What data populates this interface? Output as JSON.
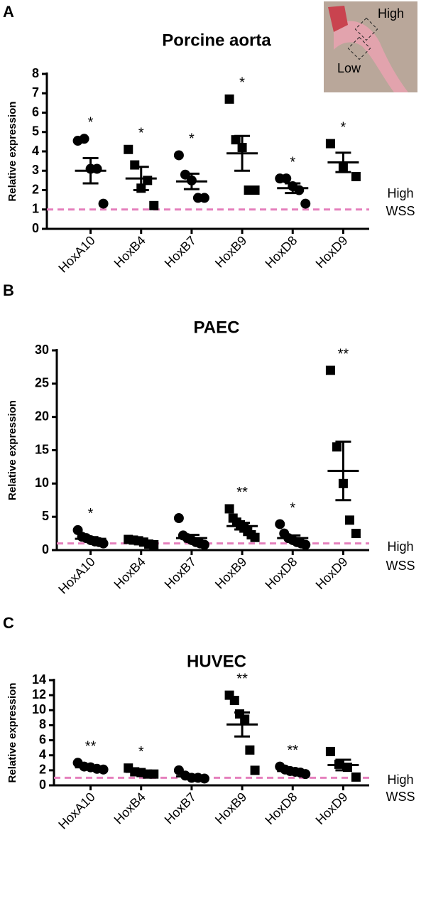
{
  "chart_data": [
    {
      "type": "dot",
      "panel": "A",
      "title": "Porcine aorta",
      "y_label": "Relative expression",
      "inset_labels": [
        "High",
        "Low"
      ],
      "categories": [
        "HoxA10",
        "HoxB4",
        "HoxB7",
        "HoxB9",
        "HoxD8",
        "HoxD9"
      ],
      "markers": [
        "circle",
        "square",
        "circle",
        "square",
        "circle",
        "square"
      ],
      "values": [
        [
          4.55,
          4.65,
          3.1,
          3.1,
          1.3
        ],
        [
          4.1,
          3.3,
          2.1,
          2.5,
          1.2
        ],
        [
          3.8,
          2.8,
          2.5,
          1.6,
          1.6
        ],
        [
          6.7,
          4.6,
          4.2,
          2.0,
          2.0
        ],
        [
          2.6,
          2.6,
          2.2,
          2.0,
          1.3
        ],
        [
          4.4,
          3.2,
          2.7
        ]
      ],
      "means": [
        3.0,
        2.6,
        2.45,
        3.9,
        2.1,
        3.43
      ],
      "sems": [
        0.65,
        0.6,
        0.4,
        0.9,
        0.25,
        0.5
      ],
      "significance": [
        "*",
        "*",
        "*",
        "*",
        "*",
        "*"
      ],
      "reference": {
        "value": 1,
        "labels": [
          "High",
          "WSS"
        ],
        "color": "#e580bd"
      },
      "ylim": [
        0,
        8
      ],
      "yticks": [
        0,
        1,
        2,
        3,
        4,
        5,
        6,
        7,
        8
      ]
    },
    {
      "type": "dot",
      "panel": "B",
      "title": "PAEC",
      "y_label": "Relative expression",
      "categories": [
        "HoxA10",
        "HoxB4",
        "HoxB7",
        "HoxB9",
        "HoxD8",
        "HoxD9"
      ],
      "markers": [
        "circle",
        "square",
        "circle",
        "square",
        "circle",
        "square"
      ],
      "values": [
        [
          3.0,
          2.0,
          1.8,
          1.5,
          1.3,
          1.2,
          1.0
        ],
        [
          1.6,
          1.5,
          1.4,
          1.2,
          0.9,
          0.8
        ],
        [
          4.8,
          2.2,
          1.8,
          1.5,
          1.2,
          1.0,
          0.8
        ],
        [
          6.2,
          4.8,
          4.2,
          3.8,
          3.3,
          2.8,
          2.3,
          1.9
        ],
        [
          3.9,
          2.5,
          1.8,
          1.5,
          1.2,
          1.0,
          0.8
        ],
        [
          27,
          15.5,
          10,
          4.5,
          2.5
        ]
      ],
      "means": [
        1.7,
        1.2,
        1.8,
        3.6,
        1.8,
        11.9
      ],
      "sems": [
        0.25,
        0.15,
        0.5,
        0.5,
        0.4,
        4.4
      ],
      "significance": [
        "*",
        null,
        null,
        "**",
        "*",
        "**"
      ],
      "reference": {
        "value": 1,
        "labels": [
          "High",
          "WSS"
        ],
        "color": "#e580bd"
      },
      "ylim": [
        0,
        30
      ],
      "yticks": [
        0,
        5,
        10,
        15,
        20,
        25,
        30
      ]
    },
    {
      "type": "dot",
      "panel": "C",
      "title": "HUVEC",
      "y_label": "Relative expression",
      "categories": [
        "HoxA10",
        "HoxB4",
        "HoxB7",
        "HoxB9",
        "HoxD8",
        "HoxD9"
      ],
      "markers": [
        "circle",
        "square",
        "circle",
        "square",
        "circle",
        "square"
      ],
      "values": [
        [
          3.0,
          2.5,
          2.4,
          2.2,
          2.1
        ],
        [
          2.3,
          1.8,
          1.7,
          1.5,
          1.5
        ],
        [
          2.0,
          1.3,
          1.0,
          1.0,
          0.9
        ],
        [
          12,
          11.3,
          9.5,
          8.8,
          4.7,
          2.0
        ],
        [
          2.5,
          2.1,
          1.9,
          1.8,
          1.7,
          1.5
        ],
        [
          4.5,
          2.8,
          2.4,
          1.1
        ]
      ],
      "means": [
        2.4,
        1.8,
        1.2,
        8.1,
        1.9,
        2.7
      ],
      "sems": [
        0.2,
        0.15,
        0.2,
        1.6,
        0.15,
        0.7
      ],
      "significance": [
        "**",
        "*",
        null,
        "**",
        "**",
        null
      ],
      "reference": {
        "value": 1,
        "labels": [
          "High",
          "WSS"
        ],
        "color": "#e580bd"
      },
      "ylim": [
        0,
        14
      ],
      "yticks": [
        0,
        2,
        4,
        6,
        8,
        10,
        12,
        14
      ]
    }
  ]
}
